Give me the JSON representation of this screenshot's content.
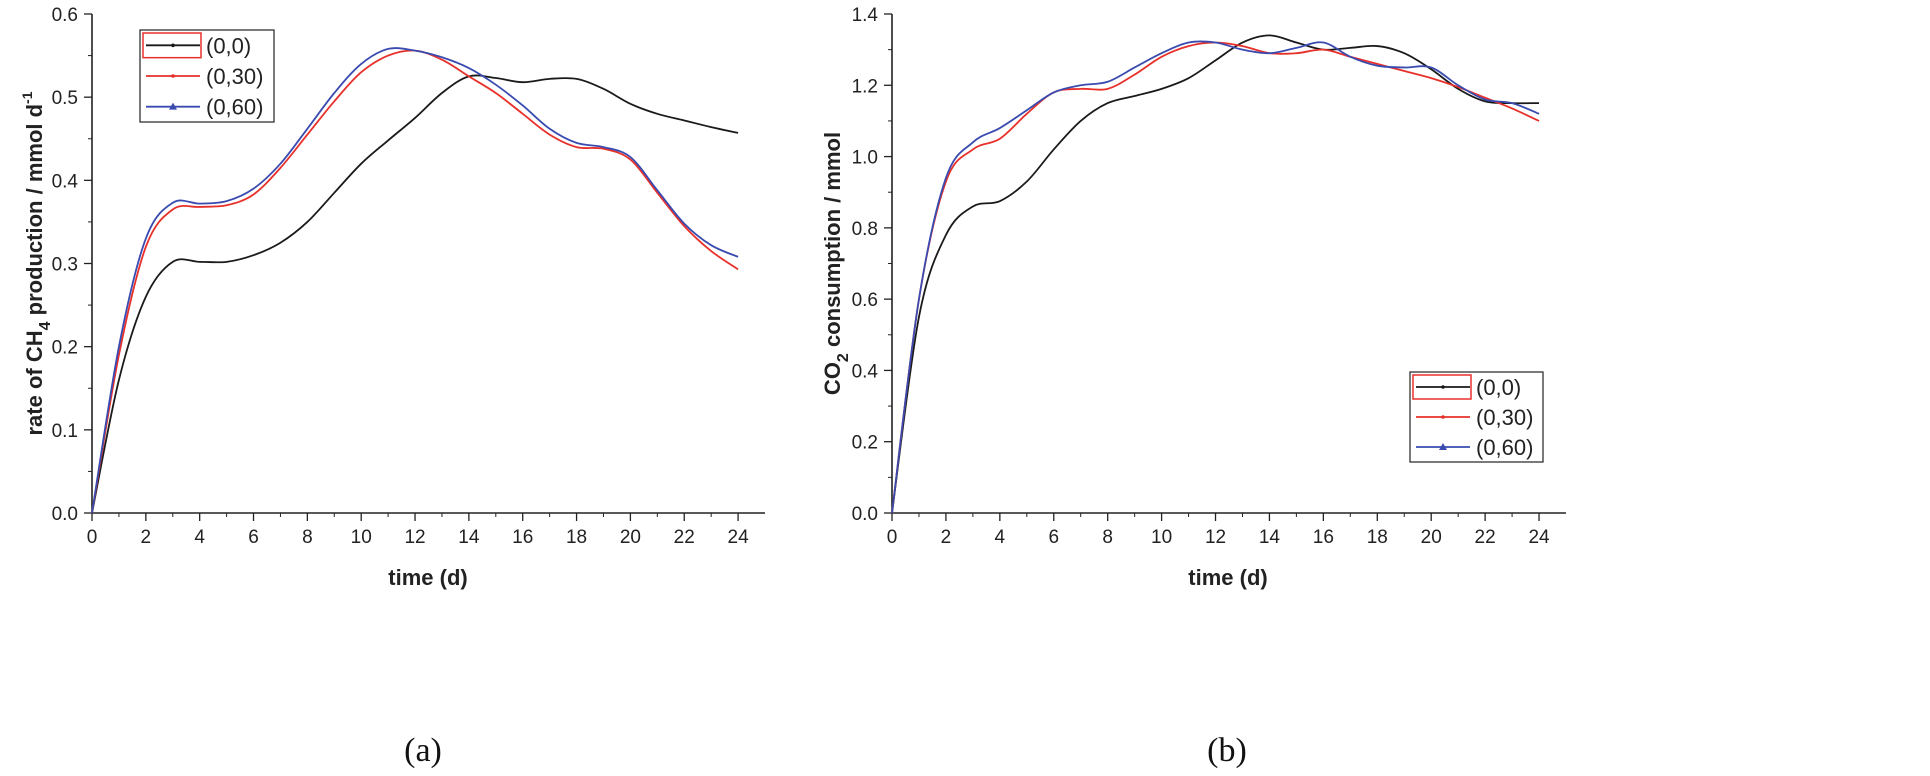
{
  "chart_data": [
    {
      "type": "line",
      "panel": "a",
      "caption": "(a)",
      "xlabel": "time (d)",
      "ylabel": {
        "pre": "rate  of  CH",
        "sub": "4",
        "post": "  production  /  mmol d",
        "sup": "-1"
      },
      "xlim": [
        0,
        25
      ],
      "ylim": [
        0,
        0.6
      ],
      "xticks": [
        0,
        2,
        4,
        6,
        8,
        10,
        12,
        14,
        16,
        18,
        20,
        22,
        24
      ],
      "yticks": [
        0.0,
        0.1,
        0.2,
        0.3,
        0.4,
        0.5,
        0.6
      ],
      "legend_position": "top-left",
      "series": [
        {
          "name": "(0,0)",
          "color": "#1a1a1a",
          "x": [
            0,
            1,
            2,
            3,
            4,
            5,
            6,
            7,
            8,
            9,
            10,
            11,
            12,
            13,
            14,
            15,
            16,
            17,
            18,
            19,
            20,
            21,
            22,
            23,
            24
          ],
          "y": [
            0,
            0.16,
            0.26,
            0.302,
            0.302,
            0.302,
            0.31,
            0.325,
            0.35,
            0.385,
            0.42,
            0.448,
            0.475,
            0.505,
            0.525,
            0.523,
            0.518,
            0.522,
            0.522,
            0.51,
            0.492,
            0.48,
            0.472,
            0.464,
            0.457
          ]
        },
        {
          "name": "(0,30)",
          "color": "#e8302a",
          "x": [
            0,
            1,
            2,
            3,
            4,
            5,
            6,
            7,
            8,
            9,
            10,
            11,
            12,
            13,
            14,
            15,
            16,
            17,
            18,
            19,
            20,
            21,
            22,
            23,
            24
          ],
          "y": [
            0,
            0.19,
            0.32,
            0.365,
            0.368,
            0.37,
            0.383,
            0.415,
            0.455,
            0.495,
            0.53,
            0.55,
            0.556,
            0.545,
            0.525,
            0.505,
            0.48,
            0.455,
            0.44,
            0.438,
            0.425,
            0.385,
            0.345,
            0.315,
            0.293
          ]
        },
        {
          "name": "(0,60)",
          "color": "#3a4bb0",
          "x": [
            0,
            1,
            2,
            3,
            4,
            5,
            6,
            7,
            8,
            9,
            10,
            11,
            12,
            13,
            14,
            15,
            16,
            17,
            18,
            19,
            20,
            21,
            22,
            23,
            24
          ],
          "y": [
            0,
            0.2,
            0.33,
            0.373,
            0.372,
            0.375,
            0.39,
            0.42,
            0.462,
            0.505,
            0.54,
            0.558,
            0.556,
            0.548,
            0.535,
            0.515,
            0.49,
            0.462,
            0.445,
            0.44,
            0.428,
            0.388,
            0.348,
            0.322,
            0.308
          ]
        }
      ]
    },
    {
      "type": "line",
      "panel": "b",
      "caption": "(b)",
      "xlabel": "time (d)",
      "ylabel": {
        "pre": "CO",
        "sub": "2",
        "post": " consumption / mmol",
        "sup": ""
      },
      "xlim": [
        0,
        25
      ],
      "ylim": [
        0,
        1.4
      ],
      "xticks": [
        0,
        2,
        4,
        6,
        8,
        10,
        12,
        14,
        16,
        18,
        20,
        22,
        24
      ],
      "yticks": [
        0.0,
        0.2,
        0.4,
        0.6,
        0.8,
        1.0,
        1.2,
        1.4
      ],
      "legend_position": "bottom-right",
      "series": [
        {
          "name": "(0,0)",
          "color": "#1a1a1a",
          "x": [
            0,
            1,
            2,
            3,
            4,
            5,
            6,
            7,
            8,
            9,
            10,
            11,
            12,
            13,
            14,
            15,
            16,
            17,
            18,
            19,
            20,
            21,
            22,
            23,
            24
          ],
          "y": [
            0,
            0.55,
            0.78,
            0.86,
            0.875,
            0.93,
            1.02,
            1.1,
            1.15,
            1.17,
            1.19,
            1.22,
            1.27,
            1.32,
            1.34,
            1.32,
            1.3,
            1.305,
            1.31,
            1.29,
            1.245,
            1.19,
            1.155,
            1.15,
            1.15
          ]
        },
        {
          "name": "(0,30)",
          "color": "#e8302a",
          "x": [
            0,
            1,
            2,
            3,
            4,
            5,
            6,
            7,
            8,
            9,
            10,
            11,
            12,
            13,
            14,
            15,
            16,
            17,
            18,
            19,
            20,
            21,
            22,
            23,
            24
          ],
          "y": [
            0,
            0.6,
            0.93,
            1.02,
            1.05,
            1.12,
            1.18,
            1.19,
            1.19,
            1.23,
            1.28,
            1.31,
            1.32,
            1.31,
            1.29,
            1.29,
            1.3,
            1.28,
            1.26,
            1.24,
            1.22,
            1.195,
            1.165,
            1.135,
            1.1
          ]
        },
        {
          "name": "(0,60)",
          "color": "#3a4bb0",
          "x": [
            0,
            1,
            2,
            3,
            4,
            5,
            6,
            7,
            8,
            9,
            10,
            11,
            12,
            13,
            14,
            15,
            16,
            17,
            18,
            19,
            20,
            21,
            22,
            23,
            24
          ],
          "y": [
            0,
            0.6,
            0.94,
            1.04,
            1.08,
            1.13,
            1.18,
            1.2,
            1.21,
            1.25,
            1.29,
            1.32,
            1.32,
            1.3,
            1.29,
            1.305,
            1.32,
            1.28,
            1.255,
            1.25,
            1.25,
            1.2,
            1.16,
            1.15,
            1.12
          ]
        }
      ]
    }
  ]
}
